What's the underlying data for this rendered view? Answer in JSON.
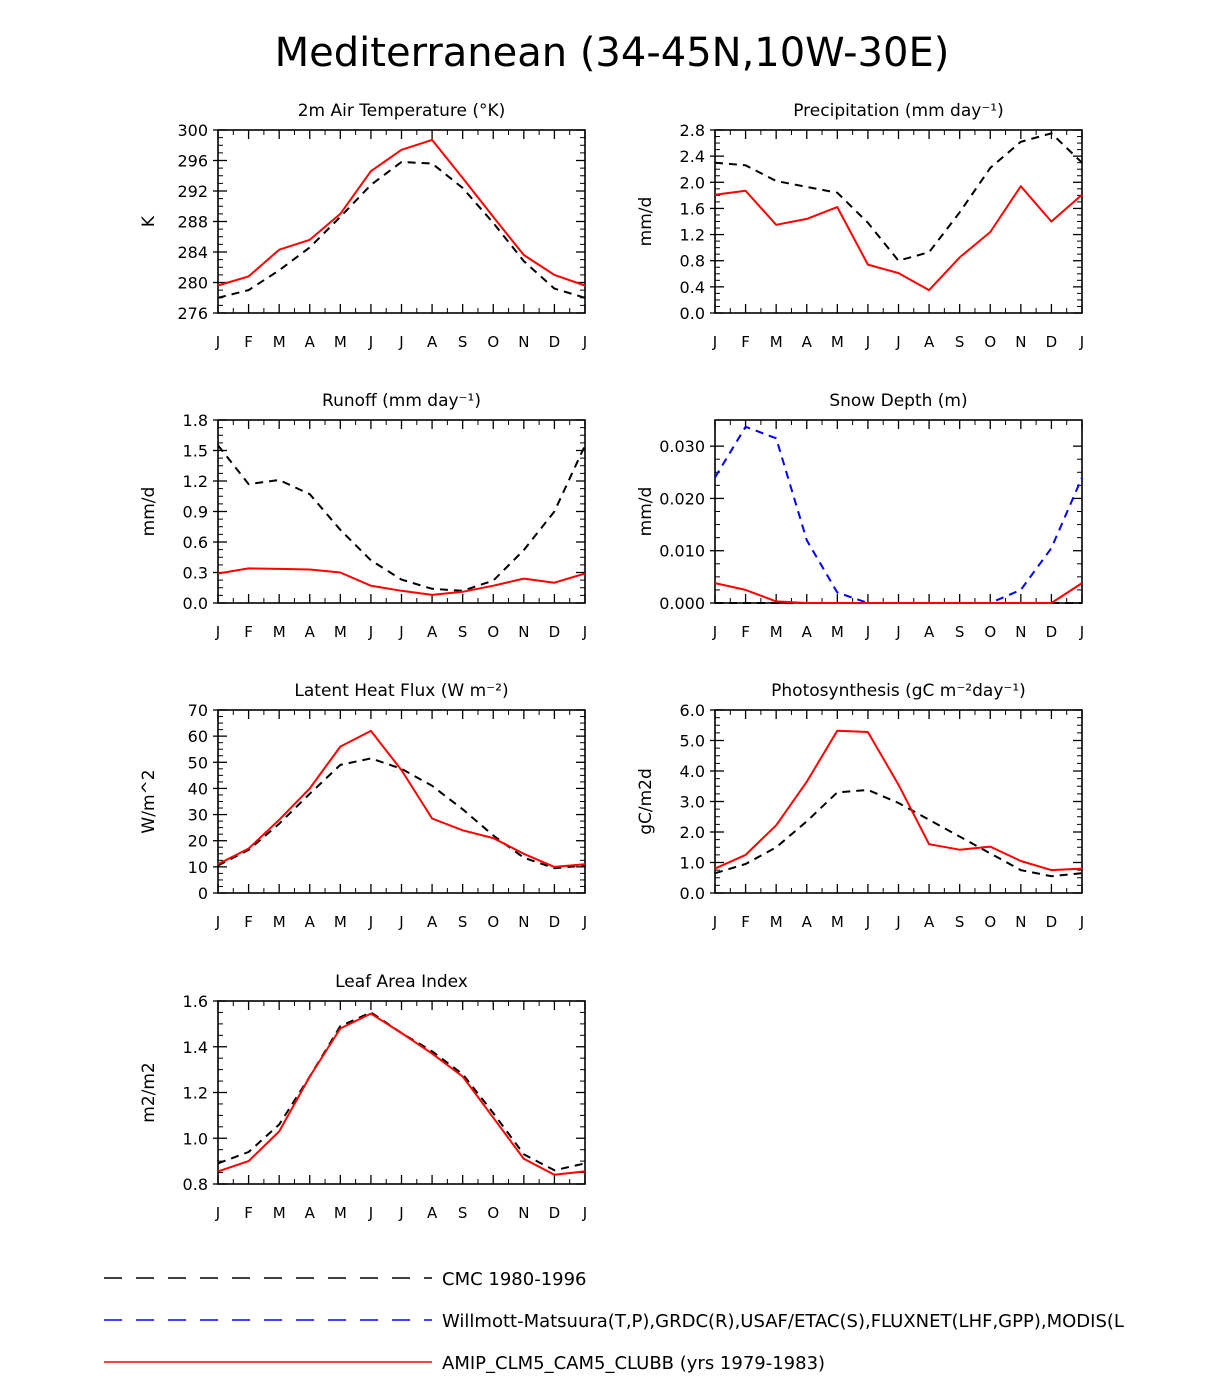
{
  "figure_title": "Mediterranean (34-45N,10W-30E)",
  "months": [
    "J",
    "F",
    "M",
    "A",
    "M",
    "J",
    "J",
    "A",
    "S",
    "O",
    "N",
    "D",
    "J"
  ],
  "colors": {
    "cmc": "#000000",
    "obs": "#0000ff",
    "model": "#ff0000"
  },
  "legend": [
    {
      "key": "cmc",
      "label": "CMC 1980-1996",
      "style": "dashed",
      "color": "#000000"
    },
    {
      "key": "obs",
      "label": "Willmott-Matsuura(T,P),GRDC(R),USAF/ETAC(S),FLUXNET(LHF,GPP),MODIS(L",
      "style": "dashed",
      "color": "#0000ff"
    },
    {
      "key": "model",
      "label": "AMIP_CLM5_CAM5_CLUBB (yrs 1979-1983)",
      "style": "solid",
      "color": "#ff0000"
    }
  ],
  "chart_data": [
    {
      "type": "line",
      "id": "temp",
      "title": "2m Air Temperature (°K)",
      "ylabel": "K",
      "ylim": [
        276,
        300
      ],
      "yticks": [
        276,
        280,
        284,
        288,
        292,
        296,
        300
      ],
      "ytick_labels": [
        "276",
        "280",
        "284",
        "288",
        "292",
        "296",
        "300"
      ],
      "series": [
        {
          "name": "CMC 1980-1996",
          "key": "cmc",
          "values": [
            278.0,
            279.0,
            281.6,
            284.6,
            288.6,
            292.8,
            295.8,
            295.6,
            292.4,
            287.8,
            282.8,
            279.2,
            278.0
          ]
        },
        {
          "name": "AMIP_CLM5_CAM5_CLUBB (yrs 1979-1983)",
          "key": "model",
          "values": [
            279.6,
            280.8,
            284.3,
            285.6,
            289.0,
            294.6,
            297.4,
            298.7,
            293.7,
            288.6,
            283.6,
            281.0,
            279.6
          ]
        }
      ]
    },
    {
      "type": "line",
      "id": "precip",
      "title": "Precipitation (mm day⁻¹)",
      "ylabel": "mm/d",
      "ylim": [
        0.0,
        2.8
      ],
      "yticks": [
        0.0,
        0.4,
        0.8,
        1.2,
        1.6,
        2.0,
        2.4,
        2.8
      ],
      "ytick_labels": [
        "0.0",
        "0.4",
        "0.8",
        "1.2",
        "1.6",
        "2.0",
        "2.4",
        "2.8"
      ],
      "series": [
        {
          "name": "CMC 1980-1996",
          "key": "cmc",
          "values": [
            2.3,
            2.26,
            2.02,
            1.93,
            1.84,
            1.38,
            0.8,
            0.93,
            1.54,
            2.22,
            2.62,
            2.75,
            2.3
          ]
        },
        {
          "name": "AMIP_CLM5_CAM5_CLUBB (yrs 1979-1983)",
          "key": "model",
          "values": [
            1.81,
            1.87,
            1.35,
            1.44,
            1.62,
            0.74,
            0.61,
            0.35,
            0.85,
            1.24,
            1.94,
            1.4,
            1.81
          ]
        }
      ]
    },
    {
      "type": "line",
      "id": "runoff",
      "title": "Runoff (mm day⁻¹)",
      "ylabel": "mm/d",
      "ylim": [
        0.0,
        1.8
      ],
      "yticks": [
        0.0,
        0.3,
        0.6,
        0.9,
        1.2,
        1.5,
        1.8
      ],
      "ytick_labels": [
        "0.0",
        "0.3",
        "0.6",
        "0.9",
        "1.2",
        "1.5",
        "1.8"
      ],
      "series": [
        {
          "name": "CMC 1980-1996",
          "key": "cmc",
          "values": [
            1.55,
            1.17,
            1.21,
            1.07,
            0.72,
            0.42,
            0.23,
            0.14,
            0.12,
            0.22,
            0.52,
            0.9,
            1.55
          ]
        },
        {
          "name": "AMIP_CLM5_CAM5_CLUBB (yrs 1979-1983)",
          "key": "model",
          "values": [
            0.29,
            0.34,
            0.335,
            0.33,
            0.3,
            0.17,
            0.12,
            0.08,
            0.11,
            0.17,
            0.24,
            0.2,
            0.29
          ]
        }
      ]
    },
    {
      "type": "line",
      "id": "snow",
      "title": "Snow Depth (m)",
      "ylabel": "mm/d",
      "ylim": [
        0.0,
        0.035
      ],
      "yticks": [
        0.0,
        0.01,
        0.02,
        0.03
      ],
      "ytick_labels": [
        "0.000",
        "0.010",
        "0.020",
        "0.030"
      ],
      "series": [
        {
          "name": "CMC 1980-1996",
          "key": "cmc",
          "values": [
            0.0,
            0.0,
            0.0,
            0.0,
            0.0,
            0.0,
            0.0,
            0.0,
            0.0,
            0.0,
            0.0,
            0.0,
            0.0
          ]
        },
        {
          "name": "Willmott-Matsuura(T,P),GRDC(R),USAF/ETAC(S),FLUXNET(LHF,GPP),MODIS(L",
          "key": "obs",
          "values": [
            0.024,
            0.0337,
            0.0315,
            0.012,
            0.002,
            0.0,
            0.0,
            0.0,
            0.0,
            0.0,
            0.0025,
            0.0105,
            0.024
          ]
        },
        {
          "name": "AMIP_CLM5_CAM5_CLUBB (yrs 1979-1983)",
          "key": "model",
          "values": [
            0.0038,
            0.0025,
            0.0003,
            0.0,
            0.0,
            0.0,
            0.0,
            0.0,
            0.0,
            0.0,
            0.0,
            0.0,
            0.0038
          ]
        }
      ]
    },
    {
      "type": "line",
      "id": "lhf",
      "title": "Latent Heat Flux (W m⁻²)",
      "ylabel": "W/m^2",
      "ylim": [
        0,
        70
      ],
      "yticks": [
        0,
        10,
        20,
        30,
        40,
        50,
        60,
        70
      ],
      "ytick_labels": [
        "0",
        "10",
        "20",
        "30",
        "40",
        "50",
        "60",
        "70"
      ],
      "series": [
        {
          "name": "CMC 1980-1996",
          "key": "cmc",
          "values": [
            10.5,
            16.5,
            26.5,
            38.0,
            49.0,
            51.5,
            47.5,
            41.0,
            32.0,
            22.0,
            13.5,
            9.5,
            10.5
          ]
        },
        {
          "name": "AMIP_CLM5_CAM5_CLUBB (yrs 1979-1983)",
          "key": "model",
          "values": [
            11.0,
            17.0,
            28.0,
            40.0,
            56.0,
            62.0,
            47.0,
            28.5,
            24.0,
            21.0,
            15.0,
            10.0,
            11.0
          ]
        }
      ]
    },
    {
      "type": "line",
      "id": "gpp",
      "title": "Photosynthesis (gC m⁻²day⁻¹)",
      "ylabel": "gC/m2d",
      "ylim": [
        0.0,
        6.0
      ],
      "yticks": [
        0.0,
        1.0,
        2.0,
        3.0,
        4.0,
        5.0,
        6.0
      ],
      "ytick_labels": [
        "0.0",
        "1.0",
        "2.0",
        "3.0",
        "4.0",
        "5.0",
        "6.0"
      ],
      "series": [
        {
          "name": "CMC 1980-1996",
          "key": "cmc",
          "values": [
            0.65,
            0.95,
            1.5,
            2.35,
            3.3,
            3.38,
            2.95,
            2.4,
            1.85,
            1.3,
            0.75,
            0.55,
            0.65
          ]
        },
        {
          "name": "AMIP_CLM5_CAM5_CLUBB (yrs 1979-1983)",
          "key": "model",
          "values": [
            0.8,
            1.25,
            2.22,
            3.65,
            5.32,
            5.28,
            3.55,
            1.6,
            1.42,
            1.52,
            1.05,
            0.75,
            0.8
          ]
        }
      ]
    },
    {
      "type": "line",
      "id": "lai",
      "title": "Leaf Area Index",
      "ylabel": "m2/m2",
      "ylim": [
        0.8,
        1.6
      ],
      "yticks": [
        0.8,
        1.0,
        1.2,
        1.4,
        1.6
      ],
      "ytick_labels": [
        "0.8",
        "1.0",
        "1.2",
        "1.4",
        "1.6"
      ],
      "series": [
        {
          "name": "CMC 1980-1996",
          "key": "cmc",
          "values": [
            0.89,
            0.94,
            1.06,
            1.27,
            1.49,
            1.55,
            1.46,
            1.38,
            1.28,
            1.11,
            0.93,
            0.86,
            0.89
          ]
        },
        {
          "name": "AMIP_CLM5_CAM5_CLUBB (yrs 1979-1983)",
          "key": "model",
          "values": [
            0.855,
            0.9,
            1.03,
            1.27,
            1.48,
            1.545,
            1.46,
            1.37,
            1.27,
            1.09,
            0.91,
            0.84,
            0.855
          ]
        }
      ]
    }
  ]
}
